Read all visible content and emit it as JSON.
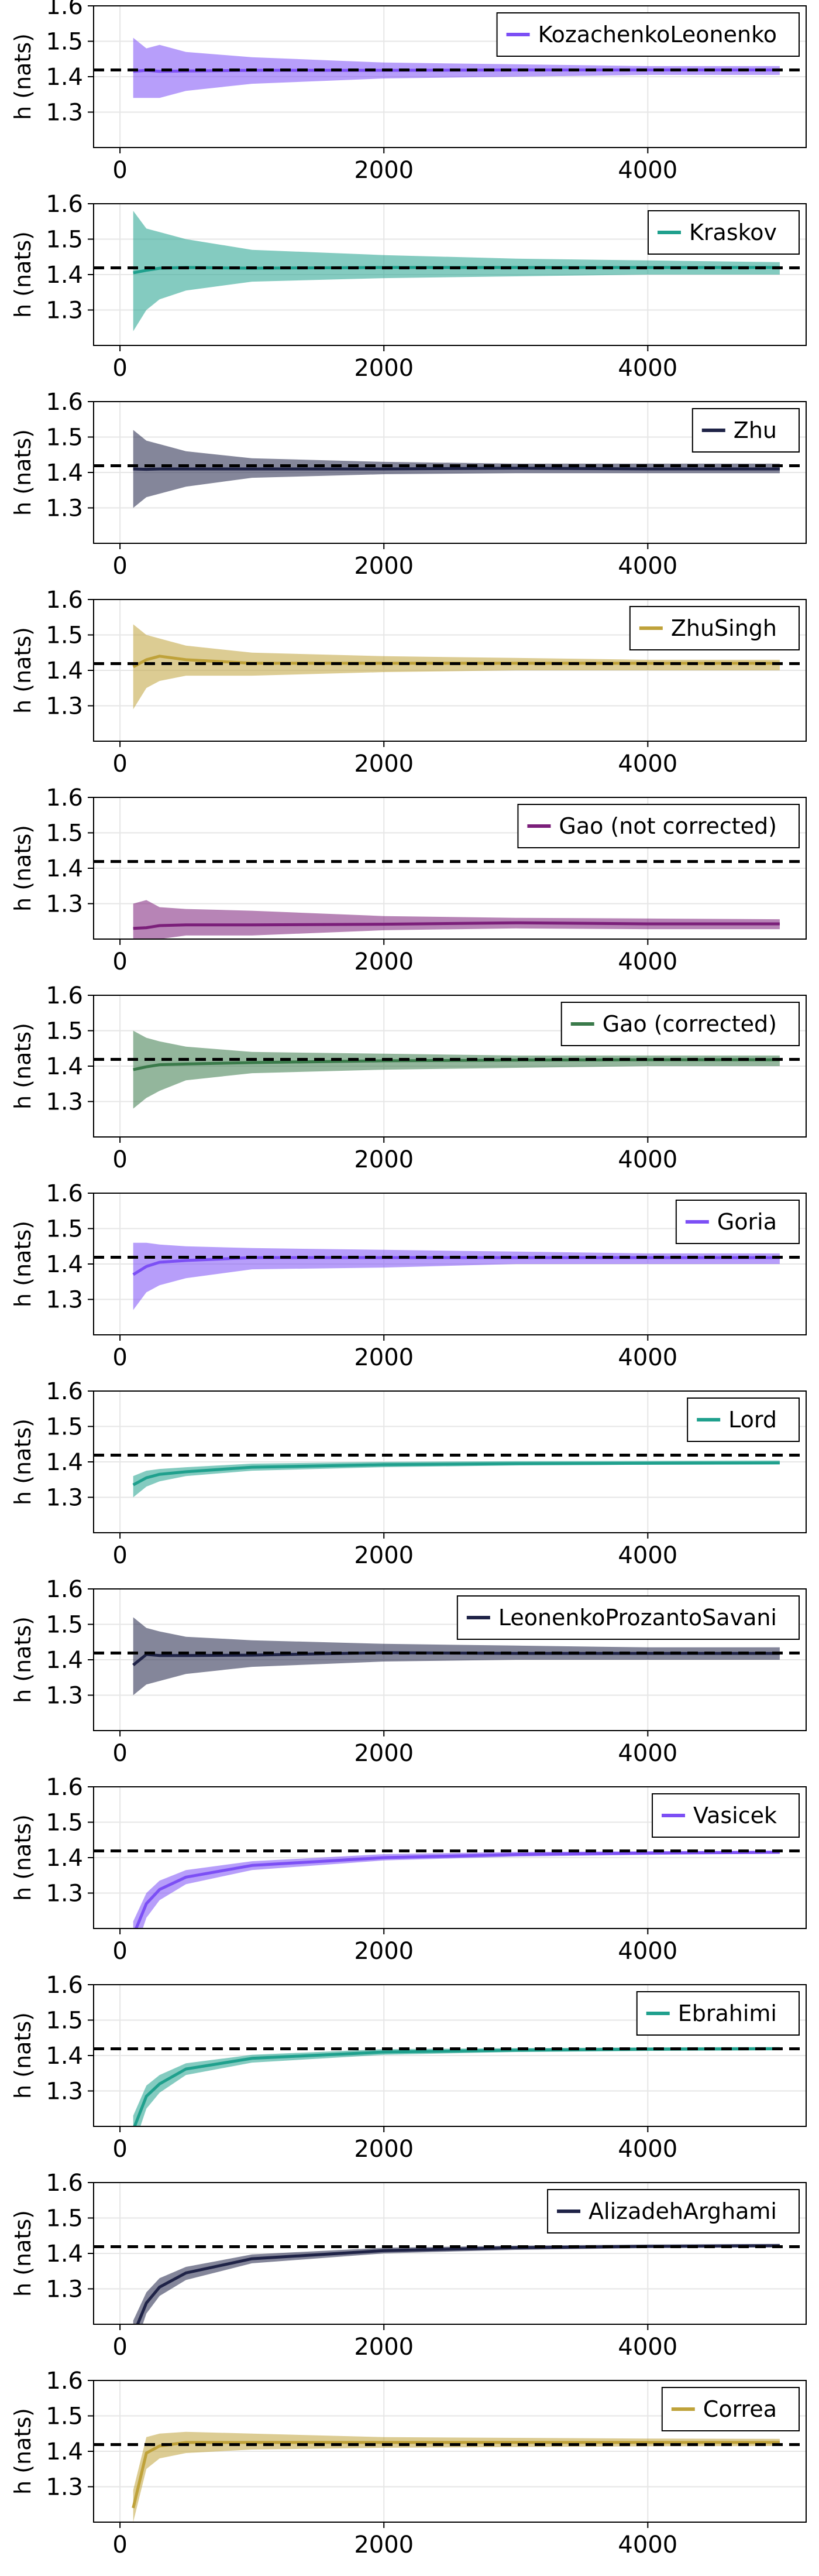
{
  "chart_data": [
    {
      "type": "line",
      "title": "",
      "xlabel": "",
      "ylabel": "h (nats)",
      "xlim": [
        -200,
        5200
      ],
      "ylim": [
        1.2,
        1.6
      ],
      "yticks": [
        "1.3",
        "1.4",
        "1.5",
        "1.6"
      ],
      "xticks": [
        "0",
        "2000",
        "4000"
      ],
      "grid": true,
      "legend": "top-right",
      "reference": 1.419,
      "series": [
        {
          "name": "KozachenkoLeonenko",
          "color": "#7c4ff5",
          "x": [
            100,
            200,
            300,
            500,
            1000,
            2000,
            3000,
            4000,
            5000
          ],
          "mean": [
            1.415,
            1.418,
            1.415,
            1.416,
            1.418,
            1.418,
            1.419,
            1.419,
            1.419
          ],
          "lower": [
            1.34,
            1.34,
            1.34,
            1.36,
            1.38,
            1.395,
            1.4,
            1.405,
            1.405
          ],
          "upper": [
            1.51,
            1.48,
            1.49,
            1.47,
            1.455,
            1.44,
            1.435,
            1.43,
            1.43
          ]
        }
      ]
    },
    {
      "type": "line",
      "title": "",
      "xlabel": "",
      "ylabel": "h (nats)",
      "xlim": [
        -200,
        5200
      ],
      "ylim": [
        1.2,
        1.6
      ],
      "yticks": [
        "1.3",
        "1.4",
        "1.5",
        "1.6"
      ],
      "xticks": [
        "0",
        "2000",
        "4000"
      ],
      "grid": true,
      "legend": "top-right",
      "reference": 1.419,
      "series": [
        {
          "name": "Kraskov",
          "color": "#1fa08d",
          "x": [
            100,
            200,
            300,
            500,
            1000,
            2000,
            3000,
            4000,
            5000
          ],
          "mean": [
            1.405,
            1.412,
            1.418,
            1.42,
            1.418,
            1.42,
            1.42,
            1.42,
            1.42
          ],
          "lower": [
            1.24,
            1.3,
            1.33,
            1.355,
            1.38,
            1.39,
            1.395,
            1.4,
            1.4
          ],
          "upper": [
            1.58,
            1.53,
            1.52,
            1.5,
            1.47,
            1.455,
            1.445,
            1.44,
            1.435
          ]
        }
      ]
    },
    {
      "type": "line",
      "title": "",
      "xlabel": "",
      "ylabel": "h (nats)",
      "xlim": [
        -200,
        5200
      ],
      "ylim": [
        1.2,
        1.6
      ],
      "yticks": [
        "1.3",
        "1.4",
        "1.5",
        "1.6"
      ],
      "xticks": [
        "0",
        "2000",
        "4000"
      ],
      "grid": true,
      "legend": "top-right",
      "reference": 1.419,
      "series": [
        {
          "name": "Zhu",
          "color": "#1f2347",
          "x": [
            100,
            200,
            300,
            500,
            1000,
            2000,
            3000,
            4000,
            5000
          ],
          "mean": [
            1.41,
            1.409,
            1.41,
            1.41,
            1.41,
            1.41,
            1.412,
            1.41,
            1.41
          ],
          "lower": [
            1.3,
            1.33,
            1.34,
            1.36,
            1.385,
            1.395,
            1.398,
            1.398,
            1.398
          ],
          "upper": [
            1.52,
            1.49,
            1.48,
            1.46,
            1.44,
            1.43,
            1.425,
            1.425,
            1.425
          ]
        }
      ]
    },
    {
      "type": "line",
      "title": "",
      "xlabel": "",
      "ylabel": "h (nats)",
      "xlim": [
        -200,
        5200
      ],
      "ylim": [
        1.2,
        1.6
      ],
      "yticks": [
        "1.3",
        "1.4",
        "1.5",
        "1.6"
      ],
      "xticks": [
        "0",
        "2000",
        "4000"
      ],
      "grid": true,
      "legend": "top-right",
      "reference": 1.419,
      "series": [
        {
          "name": "ZhuSingh",
          "color": "#bfa23a",
          "x": [
            100,
            200,
            300,
            500,
            1000,
            2000,
            3000,
            4000,
            5000
          ],
          "mean": [
            1.41,
            1.43,
            1.44,
            1.43,
            1.42,
            1.42,
            1.42,
            1.42,
            1.42
          ],
          "lower": [
            1.29,
            1.35,
            1.37,
            1.385,
            1.385,
            1.395,
            1.4,
            1.4,
            1.4
          ],
          "upper": [
            1.53,
            1.5,
            1.49,
            1.47,
            1.45,
            1.44,
            1.435,
            1.43,
            1.43
          ]
        }
      ]
    },
    {
      "type": "line",
      "title": "",
      "xlabel": "",
      "ylabel": "h (nats)",
      "xlim": [
        -200,
        5200
      ],
      "ylim": [
        1.2,
        1.6
      ],
      "yticks": [
        "1.3",
        "1.4",
        "1.5",
        "1.6"
      ],
      "xticks": [
        "0",
        "2000",
        "4000"
      ],
      "grid": true,
      "legend": "top-right",
      "reference": 1.419,
      "series": [
        {
          "name": "Gao (not corrected)",
          "color": "#7b1f7a",
          "x": [
            100,
            200,
            300,
            500,
            1000,
            2000,
            3000,
            4000,
            5000
          ],
          "mean": [
            1.23,
            1.232,
            1.238,
            1.24,
            1.24,
            1.242,
            1.246,
            1.243,
            1.243
          ],
          "lower": [
            1.2,
            1.2,
            1.2,
            1.21,
            1.21,
            1.225,
            1.23,
            1.228,
            1.228
          ],
          "upper": [
            1.3,
            1.31,
            1.29,
            1.285,
            1.28,
            1.265,
            1.26,
            1.258,
            1.256
          ]
        }
      ]
    },
    {
      "type": "line",
      "title": "",
      "xlabel": "",
      "ylabel": "h (nats)",
      "xlim": [
        -200,
        5200
      ],
      "ylim": [
        1.2,
        1.6
      ],
      "yticks": [
        "1.3",
        "1.4",
        "1.5",
        "1.6"
      ],
      "xticks": [
        "0",
        "2000",
        "4000"
      ],
      "grid": true,
      "legend": "top-right",
      "reference": 1.419,
      "series": [
        {
          "name": "Gao (corrected)",
          "color": "#3a7a4a",
          "x": [
            100,
            200,
            300,
            500,
            1000,
            2000,
            3000,
            4000,
            5000
          ],
          "mean": [
            1.39,
            1.398,
            1.404,
            1.406,
            1.41,
            1.415,
            1.417,
            1.418,
            1.418
          ],
          "lower": [
            1.28,
            1.31,
            1.33,
            1.36,
            1.38,
            1.39,
            1.395,
            1.4,
            1.4
          ],
          "upper": [
            1.5,
            1.48,
            1.47,
            1.455,
            1.44,
            1.435,
            1.43,
            1.43,
            1.43
          ]
        }
      ]
    },
    {
      "type": "line",
      "title": "",
      "xlabel": "",
      "ylabel": "h (nats)",
      "xlim": [
        -200,
        5200
      ],
      "ylim": [
        1.2,
        1.6
      ],
      "yticks": [
        "1.3",
        "1.4",
        "1.5",
        "1.6"
      ],
      "xticks": [
        "0",
        "2000",
        "4000"
      ],
      "grid": true,
      "legend": "top-right",
      "reference": 1.419,
      "series": [
        {
          "name": "Goria",
          "color": "#7c4ff5",
          "x": [
            100,
            200,
            300,
            500,
            1000,
            2000,
            3000,
            4000,
            5000
          ],
          "mean": [
            1.37,
            1.393,
            1.405,
            1.41,
            1.418,
            1.418,
            1.418,
            1.418,
            1.418
          ],
          "lower": [
            1.27,
            1.32,
            1.34,
            1.36,
            1.385,
            1.39,
            1.4,
            1.4,
            1.4
          ],
          "upper": [
            1.46,
            1.46,
            1.455,
            1.45,
            1.445,
            1.44,
            1.435,
            1.43,
            1.43
          ]
        }
      ]
    },
    {
      "type": "line",
      "title": "",
      "xlabel": "",
      "ylabel": "h (nats)",
      "xlim": [
        -200,
        5200
      ],
      "ylim": [
        1.2,
        1.6
      ],
      "yticks": [
        "1.3",
        "1.4",
        "1.5",
        "1.6"
      ],
      "xticks": [
        "0",
        "2000",
        "4000"
      ],
      "grid": true,
      "legend": "top-right",
      "reference": 1.419,
      "series": [
        {
          "name": "Lord",
          "color": "#1fa08d",
          "x": [
            100,
            200,
            300,
            500,
            1000,
            2000,
            3000,
            4000,
            5000
          ],
          "mean": [
            1.335,
            1.355,
            1.365,
            1.372,
            1.385,
            1.392,
            1.395,
            1.396,
            1.397
          ],
          "lower": [
            1.3,
            1.33,
            1.345,
            1.36,
            1.375,
            1.385,
            1.39,
            1.392,
            1.393
          ],
          "upper": [
            1.36,
            1.375,
            1.38,
            1.385,
            1.395,
            1.4,
            1.402,
            1.403,
            1.404
          ]
        }
      ]
    },
    {
      "type": "line",
      "title": "",
      "xlabel": "",
      "ylabel": "h (nats)",
      "xlim": [
        -200,
        5200
      ],
      "ylim": [
        1.2,
        1.6
      ],
      "yticks": [
        "1.3",
        "1.4",
        "1.5",
        "1.6"
      ],
      "xticks": [
        "0",
        "2000",
        "4000"
      ],
      "grid": true,
      "legend": "top-right",
      "reference": 1.419,
      "series": [
        {
          "name": "LeonenkoProzantoSavani",
          "color": "#1f2347",
          "x": [
            100,
            200,
            300,
            500,
            1000,
            2000,
            3000,
            4000,
            5000
          ],
          "mean": [
            1.385,
            1.415,
            1.412,
            1.412,
            1.413,
            1.42,
            1.418,
            1.418,
            1.418
          ],
          "lower": [
            1.3,
            1.33,
            1.34,
            1.36,
            1.38,
            1.395,
            1.4,
            1.4,
            1.4
          ],
          "upper": [
            1.52,
            1.49,
            1.48,
            1.465,
            1.455,
            1.445,
            1.44,
            1.435,
            1.435
          ]
        }
      ]
    },
    {
      "type": "line",
      "title": "",
      "xlabel": "",
      "ylabel": "h (nats)",
      "xlim": [
        -200,
        5200
      ],
      "ylim": [
        1.2,
        1.6
      ],
      "yticks": [
        "1.3",
        "1.4",
        "1.5",
        "1.6"
      ],
      "xticks": [
        "0",
        "2000",
        "4000"
      ],
      "grid": true,
      "legend": "top-right",
      "reference": 1.419,
      "series": [
        {
          "name": "Vasicek",
          "color": "#7c4ff5",
          "x": [
            100,
            200,
            300,
            500,
            1000,
            2000,
            3000,
            4000,
            5000
          ],
          "mean": [
            1.18,
            1.27,
            1.31,
            1.345,
            1.378,
            1.4,
            1.409,
            1.413,
            1.415
          ],
          "lower": [
            1.12,
            1.23,
            1.28,
            1.325,
            1.365,
            1.392,
            1.403,
            1.408,
            1.411
          ],
          "upper": [
            1.22,
            1.3,
            1.335,
            1.365,
            1.39,
            1.41,
            1.416,
            1.418,
            1.42
          ]
        }
      ]
    },
    {
      "type": "line",
      "title": "",
      "xlabel": "",
      "ylabel": "h (nats)",
      "xlim": [
        -200,
        5200
      ],
      "ylim": [
        1.2,
        1.6
      ],
      "yticks": [
        "1.3",
        "1.4",
        "1.5",
        "1.6"
      ],
      "xticks": [
        "0",
        "2000",
        "4000"
      ],
      "grid": true,
      "legend": "top-right",
      "reference": 1.419,
      "series": [
        {
          "name": "Ebrahimi",
          "color": "#1fa08d",
          "x": [
            100,
            200,
            300,
            500,
            1000,
            2000,
            3000,
            4000,
            5000
          ],
          "mean": [
            1.19,
            1.285,
            1.32,
            1.362,
            1.392,
            1.41,
            1.415,
            1.418,
            1.419
          ],
          "lower": [
            1.14,
            1.25,
            1.295,
            1.345,
            1.38,
            1.402,
            1.41,
            1.413,
            1.415
          ],
          "upper": [
            1.23,
            1.315,
            1.345,
            1.378,
            1.402,
            1.418,
            1.421,
            1.423,
            1.424
          ]
        }
      ]
    },
    {
      "type": "line",
      "title": "",
      "xlabel": "",
      "ylabel": "h (nats)",
      "xlim": [
        -200,
        5200
      ],
      "ylim": [
        1.2,
        1.6
      ],
      "yticks": [
        "1.3",
        "1.4",
        "1.5",
        "1.6"
      ],
      "xticks": [
        "0",
        "2000",
        "4000"
      ],
      "grid": true,
      "legend": "top-right",
      "reference": 1.419,
      "series": [
        {
          "name": "AlizadehArghami",
          "color": "#1f2347",
          "x": [
            100,
            200,
            300,
            500,
            1000,
            2000,
            3000,
            4000,
            5000
          ],
          "mean": [
            1.17,
            1.26,
            1.305,
            1.345,
            1.385,
            1.408,
            1.416,
            1.42,
            1.422
          ],
          "lower": [
            1.12,
            1.23,
            1.28,
            1.325,
            1.372,
            1.4,
            1.41,
            1.415,
            1.417
          ],
          "upper": [
            1.21,
            1.29,
            1.33,
            1.362,
            1.397,
            1.416,
            1.422,
            1.425,
            1.427
          ]
        }
      ]
    },
    {
      "type": "line",
      "title": "",
      "xlabel": "",
      "ylabel": "h (nats)",
      "xlim": [
        -200,
        5200
      ],
      "ylim": [
        1.2,
        1.6
      ],
      "yticks": [
        "1.3",
        "1.4",
        "1.5",
        "1.6"
      ],
      "xticks": [
        "0",
        "2000",
        "4000"
      ],
      "grid": true,
      "legend": "top-right",
      "reference": 1.419,
      "series": [
        {
          "name": "Correa",
          "color": "#bfa23a",
          "x": [
            100,
            200,
            300,
            500,
            1000,
            2000,
            3000,
            4000,
            5000
          ],
          "mean": [
            1.24,
            1.395,
            1.415,
            1.425,
            1.425,
            1.425,
            1.425,
            1.425,
            1.425
          ],
          "lower": [
            1.2,
            1.35,
            1.38,
            1.395,
            1.405,
            1.41,
            1.412,
            1.414,
            1.415
          ],
          "upper": [
            1.29,
            1.44,
            1.45,
            1.455,
            1.45,
            1.44,
            1.438,
            1.436,
            1.435
          ]
        }
      ]
    }
  ]
}
